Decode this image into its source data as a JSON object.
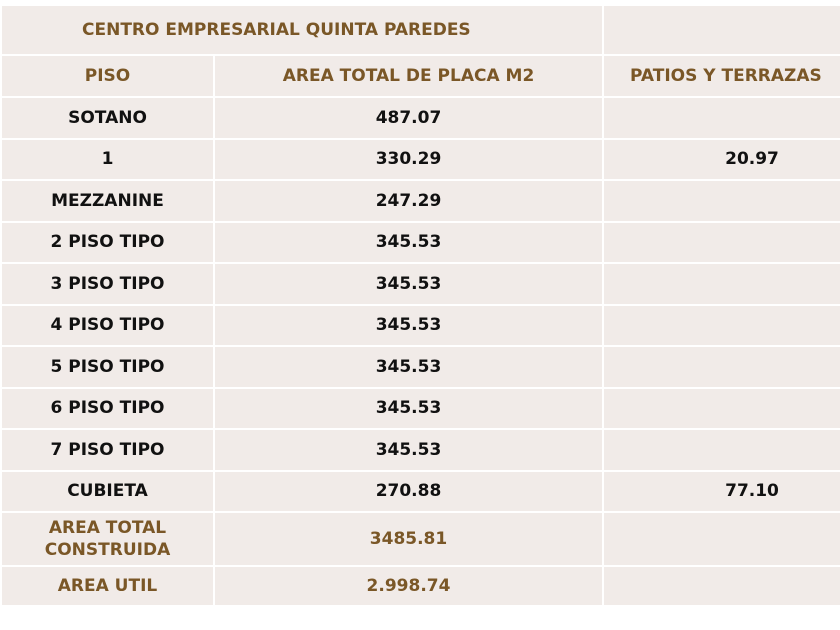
{
  "title": "CENTRO EMPRESARIAL QUINTA PAREDES",
  "headers": {
    "piso": "PISO",
    "area": "AREA TOTAL DE PLACA M2",
    "patios": "PATIOS Y TERRAZAS"
  },
  "rows": [
    {
      "piso": "SOTANO",
      "area": "487.07",
      "patios": ""
    },
    {
      "piso": "1",
      "area": "330.29",
      "patios": "20.97"
    },
    {
      "piso": "MEZZANINE",
      "area": "247.29",
      "patios": ""
    },
    {
      "piso": "2 PISO TIPO",
      "area": "345.53",
      "patios": ""
    },
    {
      "piso": "3 PISO TIPO",
      "area": "345.53",
      "patios": ""
    },
    {
      "piso": "4 PISO TIPO",
      "area": "345.53",
      "patios": ""
    },
    {
      "piso": "5 PISO TIPO",
      "area": "345.53",
      "patios": ""
    },
    {
      "piso": "6 PISO TIPO",
      "area": "345.53",
      "patios": ""
    },
    {
      "piso": "7 PISO TIPO",
      "area": "345.53",
      "patios": ""
    },
    {
      "piso": "CUBIETA",
      "area": "270.88",
      "patios": "77.10"
    }
  ],
  "total": {
    "label_line1": "AREA TOTAL",
    "label_line2": "CONSTRUIDA",
    "value": "3485.81"
  },
  "util": {
    "label": "AREA UTIL",
    "value": "2.998.74"
  }
}
